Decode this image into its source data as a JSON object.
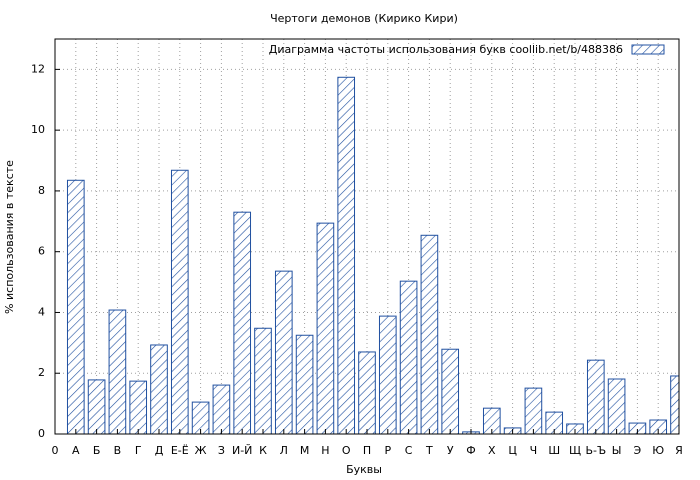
{
  "chart_data": {
    "type": "bar",
    "title": "Чертоги демонов (Кирико Кири)",
    "xlabel": "Буквы",
    "ylabel": "% использования в тексте",
    "categories": [
      "0",
      "А",
      "Б",
      "В",
      "Г",
      "Д",
      "Е-Ё",
      "Ж",
      "З",
      "И-Й",
      "К",
      "Л",
      "М",
      "Н",
      "О",
      "П",
      "Р",
      "С",
      "Т",
      "У",
      "Ф",
      "Х",
      "Ц",
      "Ч",
      "Ш",
      "Щ",
      "Ь-Ъ",
      "Ы",
      "Э",
      "Ю",
      "Я"
    ],
    "series": [
      {
        "name": "Диаграмма частоты использования букв  coollib.net/b/488386",
        "color": "#2050a0",
        "values": [
          null,
          8.35,
          1.78,
          4.08,
          1.74,
          2.93,
          8.68,
          1.05,
          1.61,
          7.3,
          3.48,
          5.36,
          3.25,
          6.94,
          11.74,
          2.7,
          3.88,
          5.03,
          6.54,
          2.79,
          0.07,
          0.85,
          0.2,
          1.51,
          0.72,
          0.33,
          2.43,
          1.81,
          0.36,
          0.46,
          1.91
        ]
      }
    ],
    "ylim": [
      0,
      13
    ],
    "yticks": [
      0,
      2,
      4,
      6,
      8,
      10,
      12
    ],
    "grid": true,
    "legend": "top-right"
  }
}
